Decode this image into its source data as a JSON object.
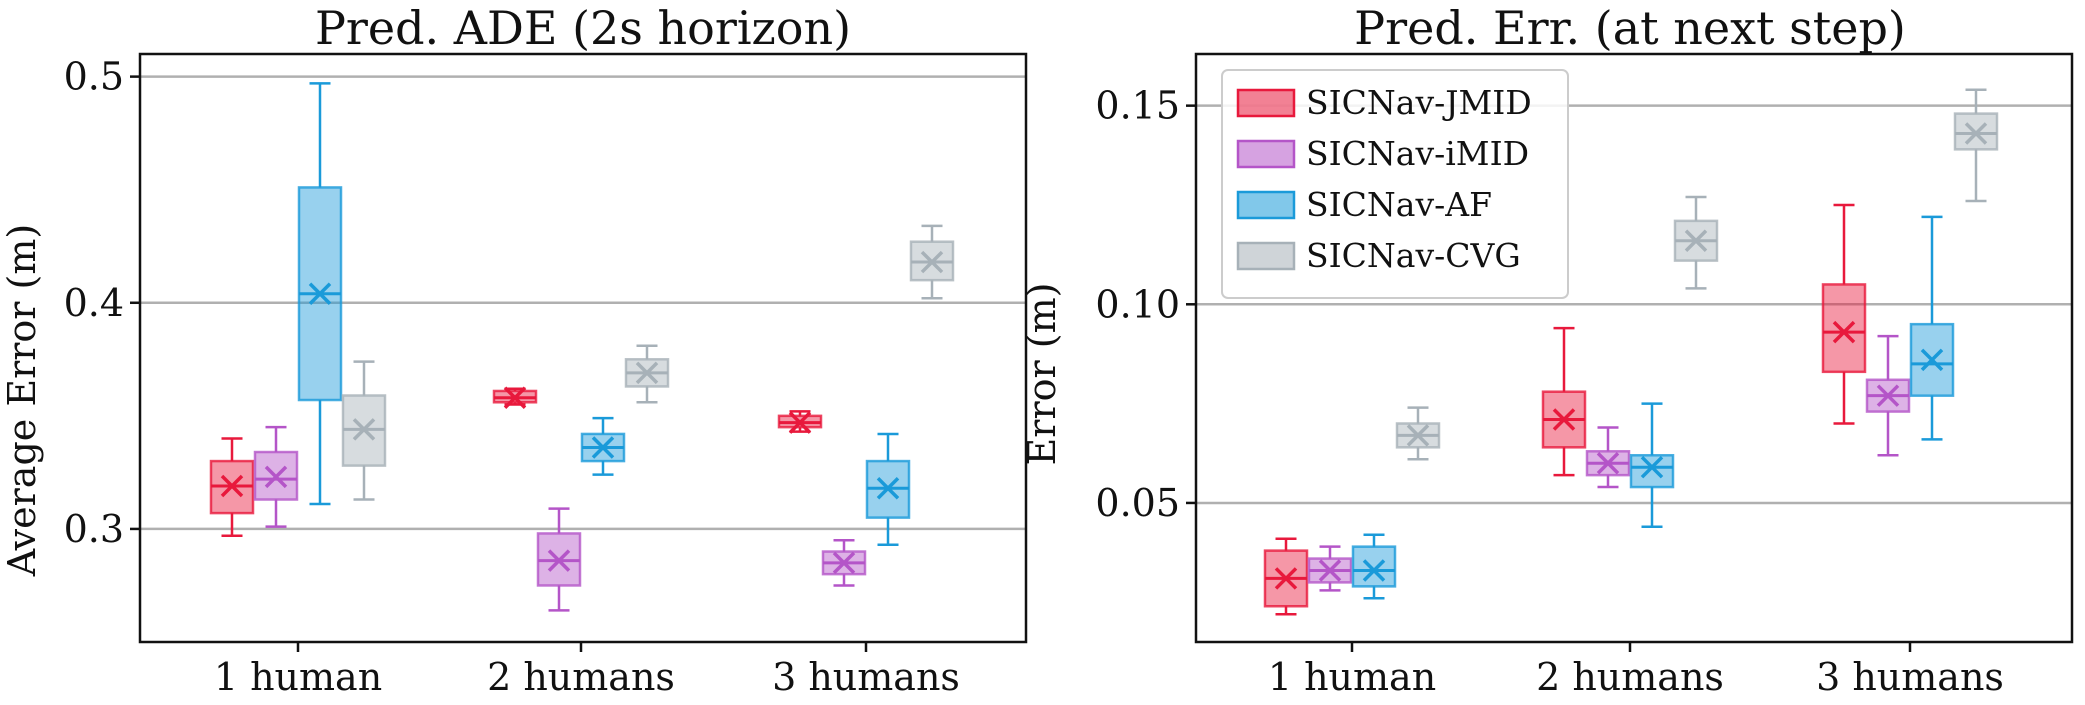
{
  "chart_data": [
    {
      "type": "box",
      "title": "Pred. ADE (2s horizon)",
      "xlabel": "",
      "ylabel": "Average Error (m)",
      "ylim": [
        0.25,
        0.51
      ],
      "yticks": [
        0.3,
        0.4,
        0.5
      ],
      "ytick_labels": [
        "0.3",
        "0.4",
        "0.5"
      ],
      "grid": "horizontal",
      "categories": [
        "1 human",
        "2 humans",
        "3 humans"
      ],
      "series": [
        {
          "name": "SICNav-JMID",
          "color": "#e8193c",
          "boxes": [
            {
              "whislo": 0.297,
              "q1": 0.307,
              "med": 0.319,
              "mean": 0.319,
              "q3": 0.33,
              "whishi": 0.34
            },
            {
              "whislo": 0.355,
              "q1": 0.356,
              "med": 0.358,
              "mean": 0.358,
              "q3": 0.361,
              "whishi": 0.362
            },
            {
              "whislo": 0.343,
              "q1": 0.345,
              "med": 0.347,
              "mean": 0.347,
              "q3": 0.35,
              "whishi": 0.352
            }
          ]
        },
        {
          "name": "SICNav-iMID",
          "color": "#b455c8",
          "boxes": [
            {
              "whislo": 0.301,
              "q1": 0.313,
              "med": 0.322,
              "mean": 0.323,
              "q3": 0.334,
              "whishi": 0.345
            },
            {
              "whislo": 0.264,
              "q1": 0.275,
              "med": 0.286,
              "mean": 0.286,
              "q3": 0.298,
              "whishi": 0.309
            },
            {
              "whislo": 0.275,
              "q1": 0.28,
              "med": 0.285,
              "mean": 0.285,
              "q3": 0.29,
              "whishi": 0.295
            }
          ]
        },
        {
          "name": "SICNav-AF",
          "color": "#1a9ad9",
          "boxes": [
            {
              "whislo": 0.311,
              "q1": 0.357,
              "med": 0.404,
              "mean": 0.404,
              "q3": 0.451,
              "whishi": 0.497
            },
            {
              "whislo": 0.324,
              "q1": 0.33,
              "med": 0.336,
              "mean": 0.336,
              "q3": 0.342,
              "whishi": 0.349
            },
            {
              "whislo": 0.293,
              "q1": 0.305,
              "med": 0.318,
              "mean": 0.318,
              "q3": 0.33,
              "whishi": 0.342
            }
          ]
        },
        {
          "name": "SICNav-CVG",
          "color": "#a7b1b8",
          "boxes": [
            {
              "whislo": 0.313,
              "q1": 0.328,
              "med": 0.344,
              "mean": 0.344,
              "q3": 0.359,
              "whishi": 0.374
            },
            {
              "whislo": 0.356,
              "q1": 0.363,
              "med": 0.369,
              "mean": 0.369,
              "q3": 0.375,
              "whishi": 0.381
            },
            {
              "whislo": 0.402,
              "q1": 0.41,
              "med": 0.418,
              "mean": 0.418,
              "q3": 0.427,
              "whishi": 0.434
            }
          ]
        }
      ]
    },
    {
      "type": "box",
      "title": "Pred. Err. (at next step)",
      "xlabel": "",
      "ylabel": "Error (m)",
      "ylim": [
        0.015,
        0.163
      ],
      "yticks": [
        0.05,
        0.1,
        0.15
      ],
      "ytick_labels": [
        "0.05",
        "0.10",
        "0.15"
      ],
      "grid": "horizontal",
      "legend": "top-left",
      "categories": [
        "1 human",
        "2 humans",
        "3 humans"
      ],
      "series": [
        {
          "name": "SICNav-JMID",
          "color": "#e8193c",
          "boxes": [
            {
              "whislo": 0.022,
              "q1": 0.024,
              "med": 0.031,
              "mean": 0.031,
              "q3": 0.038,
              "whishi": 0.041
            },
            {
              "whislo": 0.057,
              "q1": 0.064,
              "med": 0.071,
              "mean": 0.071,
              "q3": 0.078,
              "whishi": 0.094
            },
            {
              "whislo": 0.07,
              "q1": 0.083,
              "med": 0.093,
              "mean": 0.093,
              "q3": 0.105,
              "whishi": 0.125
            }
          ]
        },
        {
          "name": "SICNav-iMID",
          "color": "#b455c8",
          "boxes": [
            {
              "whislo": 0.028,
              "q1": 0.03,
              "med": 0.033,
              "mean": 0.033,
              "q3": 0.036,
              "whishi": 0.039
            },
            {
              "whislo": 0.054,
              "q1": 0.057,
              "med": 0.06,
              "mean": 0.06,
              "q3": 0.063,
              "whishi": 0.069
            },
            {
              "whislo": 0.062,
              "q1": 0.073,
              "med": 0.077,
              "mean": 0.077,
              "q3": 0.081,
              "whishi": 0.092
            }
          ]
        },
        {
          "name": "SICNav-AF",
          "color": "#1a9ad9",
          "boxes": [
            {
              "whislo": 0.026,
              "q1": 0.029,
              "med": 0.033,
              "mean": 0.033,
              "q3": 0.039,
              "whishi": 0.042
            },
            {
              "whislo": 0.044,
              "q1": 0.054,
              "med": 0.059,
              "mean": 0.059,
              "q3": 0.062,
              "whishi": 0.075
            },
            {
              "whislo": 0.066,
              "q1": 0.077,
              "med": 0.085,
              "mean": 0.086,
              "q3": 0.095,
              "whishi": 0.122
            }
          ]
        },
        {
          "name": "SICNav-CVG",
          "color": "#a7b1b8",
          "boxes": [
            {
              "whislo": 0.061,
              "q1": 0.064,
              "med": 0.067,
              "mean": 0.067,
              "q3": 0.07,
              "whishi": 0.074
            },
            {
              "whislo": 0.104,
              "q1": 0.111,
              "med": 0.116,
              "mean": 0.116,
              "q3": 0.121,
              "whishi": 0.127
            },
            {
              "whislo": 0.126,
              "q1": 0.139,
              "med": 0.143,
              "mean": 0.143,
              "q3": 0.148,
              "whishi": 0.154
            }
          ]
        }
      ]
    }
  ]
}
